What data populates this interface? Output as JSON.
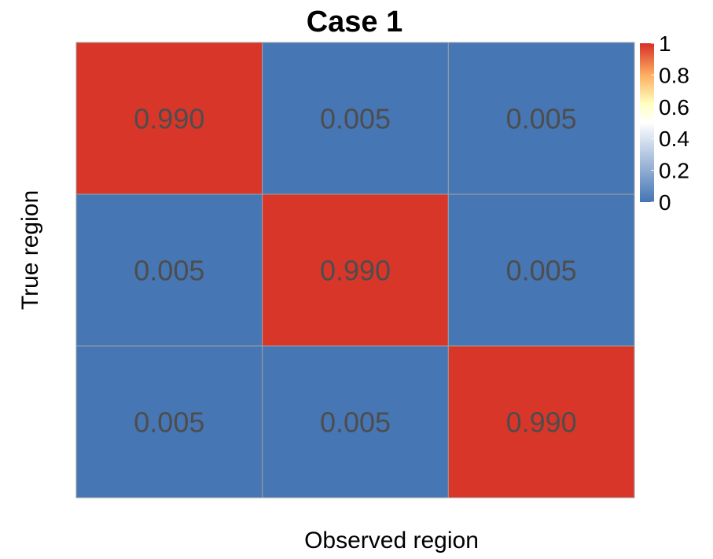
{
  "chart_data": {
    "type": "heatmap",
    "title": "Case 1",
    "xlabel": "Observed region",
    "ylabel": "True region",
    "rows": 3,
    "cols": 3,
    "values": [
      [
        0.99,
        0.005,
        0.005
      ],
      [
        0.005,
        0.99,
        0.005
      ],
      [
        0.005,
        0.005,
        0.99
      ]
    ],
    "cell_labels": [
      [
        "0.990",
        "0.005",
        "0.005"
      ],
      [
        "0.005",
        "0.990",
        "0.005"
      ],
      [
        "0.005",
        "0.005",
        "0.990"
      ]
    ],
    "value_range": [
      0,
      1
    ],
    "colorbar": {
      "ticks": [
        0,
        0.2,
        0.4,
        0.6,
        0.8,
        1
      ],
      "tick_labels": [
        "0",
        "0.2",
        "0.4",
        "0.6",
        "0.8",
        "1"
      ],
      "placement": "top-right",
      "colors": [
        "#4575b4",
        "#ffffff",
        "#ffffbf",
        "#fdae61",
        "#d73027"
      ]
    },
    "grid_line_color": "#a0a0a0",
    "cell_label_color": "#4d4d4d"
  }
}
